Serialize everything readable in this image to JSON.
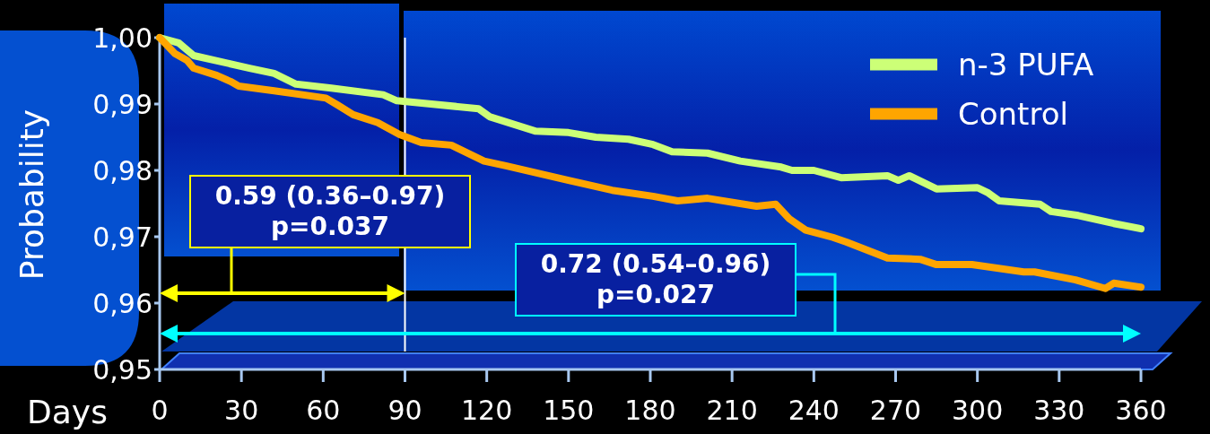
{
  "chart_data": {
    "type": "line",
    "xlabel": "Days",
    "ylabel": "Probability",
    "xlim": [
      0,
      360
    ],
    "ylim": [
      0.95,
      1.0
    ],
    "xticks": [
      0,
      30,
      60,
      90,
      120,
      150,
      180,
      210,
      240,
      270,
      300,
      330,
      360
    ],
    "yticks": [
      {
        "value": 0.95,
        "label": "0,95"
      },
      {
        "value": 0.96,
        "label": "0,96"
      },
      {
        "value": 0.97,
        "label": "0,97"
      },
      {
        "value": 0.98,
        "label": "0,98"
      },
      {
        "value": 0.99,
        "label": "0,99"
      },
      {
        "value": 1.0,
        "label": "1,00"
      }
    ],
    "grid": false,
    "legend": "top right",
    "line_style": "solid",
    "marker": "none",
    "series": [
      {
        "name": "n-3 PUFA",
        "color": "#ccff77",
        "x": [
          0,
          7,
          12.5,
          33,
          42,
          50,
          63,
          82,
          87,
          117,
          121,
          138,
          150,
          160,
          172,
          181,
          188,
          201,
          213,
          228,
          232,
          240,
          250,
          267,
          271,
          275,
          285,
          300,
          304,
          308,
          323,
          327,
          337,
          350,
          360
        ],
        "values": [
          1.0,
          0.9992,
          0.9973,
          0.9954,
          0.9946,
          0.993,
          0.9924,
          0.9914,
          0.9905,
          0.9893,
          0.9881,
          0.9859,
          0.9857,
          0.985,
          0.9847,
          0.9839,
          0.9828,
          0.9826,
          0.9814,
          0.9805,
          0.98,
          0.98,
          0.9789,
          0.9792,
          0.9785,
          0.9792,
          0.9772,
          0.9774,
          0.9766,
          0.9754,
          0.9749,
          0.9738,
          0.9732,
          0.972,
          0.9712
        ]
      },
      {
        "name": "Control",
        "color": "#ffa500",
        "x": [
          0,
          5.6,
          10,
          12.5,
          21,
          26,
          29,
          42,
          61,
          65.5,
          71,
          80,
          88,
          96,
          107,
          119,
          127,
          150,
          166,
          181,
          190,
          201,
          219,
          226,
          231,
          237,
          247,
          252,
          267,
          279,
          285,
          298,
          317,
          321,
          336,
          347,
          350,
          360
        ],
        "values": [
          1.0,
          0.9976,
          0.9966,
          0.9954,
          0.9943,
          0.9934,
          0.9927,
          0.992,
          0.9909,
          0.9898,
          0.9884,
          0.9872,
          0.9854,
          0.9842,
          0.9838,
          0.9814,
          0.9807,
          0.9785,
          0.977,
          0.9761,
          0.9754,
          0.9758,
          0.9746,
          0.9749,
          0.9727,
          0.971,
          0.9699,
          0.9692,
          0.9668,
          0.9666,
          0.9658,
          0.9658,
          0.9647,
          0.9647,
          0.9635,
          0.9622,
          0.963,
          0.9624
        ]
      }
    ],
    "ref_lines": [
      {
        "axis": "x",
        "value": 90,
        "color": "#ffffff"
      }
    ],
    "annotations": [
      "0.59 (0.36–0.97)\np=0.037",
      "0.72 (0.54–0.96)\np=0.027"
    ]
  }
}
